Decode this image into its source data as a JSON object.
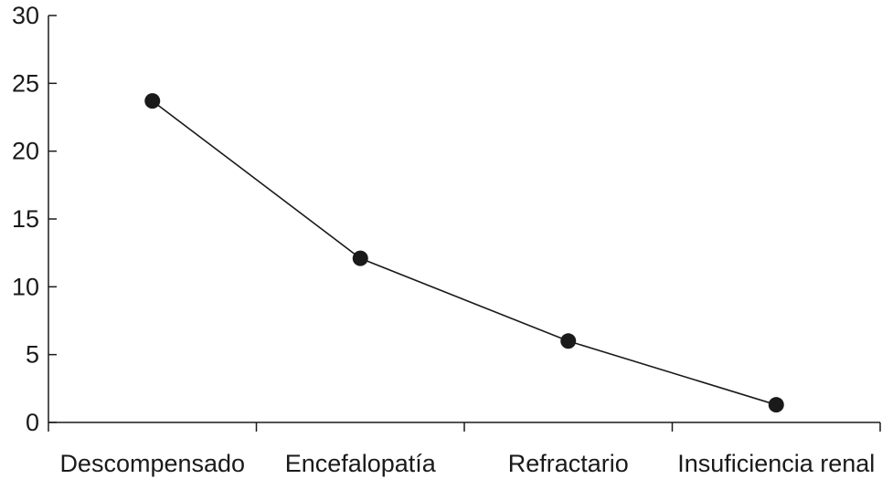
{
  "chart_data": {
    "type": "line",
    "title": "",
    "xlabel": "",
    "ylabel": "",
    "categories": [
      "Descompensado",
      "Encefalopatía",
      "Refractario",
      "Insuficiencia renal"
    ],
    "series": [
      {
        "values": [
          23.7,
          12.1,
          6.0,
          1.3
        ]
      }
    ],
    "ylim": [
      0,
      30
    ],
    "yticks": [
      0,
      5,
      10,
      15,
      20,
      25,
      30
    ],
    "grid": false,
    "legend": "none",
    "colors": {
      "line": "#1a1a1a",
      "marker": "#1a1a1a",
      "axis": "#1a1a1a"
    }
  }
}
